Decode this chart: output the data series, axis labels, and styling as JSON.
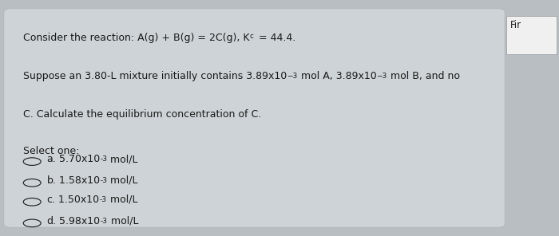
{
  "bg_color": "#b8bec2",
  "card_color": "#cdd3d7",
  "sidebar_color": "#dde0e2",
  "text_color": "#1a1a1a",
  "sidebar_text": "Fir",
  "font_size": 9.0,
  "select_one": "Select one:",
  "line1a": "Consider the reaction: A(g) + B(g) = 2C(g), K",
  "line1b": "c",
  "line1c": " = 44.4.",
  "line2a": "Suppose an 3.80-L mixture initially contains 3.89x10",
  "line2b": "-3",
  "line2c": " mol A, 3.89x10",
  "line2d": "-3",
  "line2e": " mol B, and no",
  "line3": "C. Calculate the equilibrium concentration of C.",
  "options": [
    {
      "label": "a.",
      "value": "5.70x10",
      "sup": "-3",
      "unit": " mol/L"
    },
    {
      "label": "b.",
      "value": "1.58x10",
      "sup": "-3",
      "unit": " mol/L"
    },
    {
      "label": "c.",
      "value": "1.50x10",
      "sup": "-3",
      "unit": " mol/L"
    },
    {
      "label": "d.",
      "value": "5.98x10",
      "sup": "-3",
      "unit": " mol/L"
    }
  ]
}
